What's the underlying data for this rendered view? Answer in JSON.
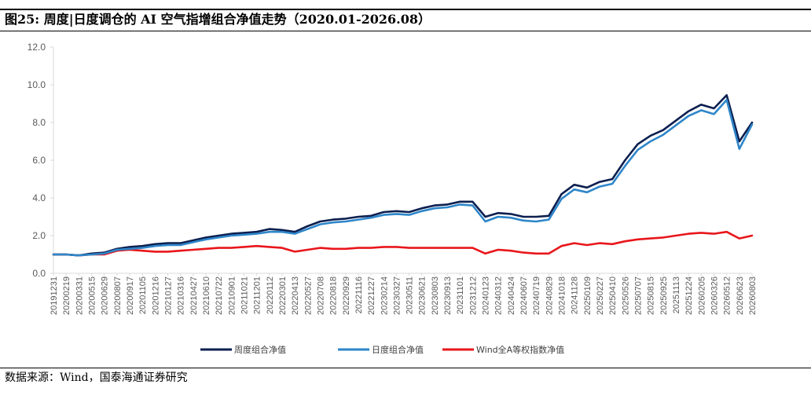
{
  "figure": {
    "title": "图25:  周度|日度调仓的 AI 空气指增组合净值走势（2020.01-2026.08）",
    "source": "数据来源：Wind，国泰海通证券研究"
  },
  "colors": {
    "weekly": "#0c1f4f",
    "daily": "#2e86c9",
    "wind_a": "#e8161b",
    "axis": "#d9d9d9",
    "tick_text": "#595959"
  },
  "chart_data": {
    "type": "line",
    "title": "",
    "xlabel": "",
    "ylabel": "",
    "ylim": [
      0,
      12
    ],
    "yticks": [
      "0.0",
      "2.0",
      "4.0",
      "6.0",
      "8.0",
      "10.0",
      "12.0"
    ],
    "grid": false,
    "legend_position": "bottom",
    "categories": [
      "20191231",
      "20200219",
      "20200331",
      "20200515",
      "20200629",
      "20200807",
      "20200917",
      "20201105",
      "20201216",
      "20210127",
      "20210316",
      "20210427",
      "20210610",
      "20210722",
      "20210901",
      "20211021",
      "20211201",
      "20220112",
      "20220301",
      "20220413",
      "20220527",
      "20220708",
      "20220818",
      "20220929",
      "20221116",
      "20221227",
      "20230214",
      "20230327",
      "20230511",
      "20230621",
      "20230803",
      "20230913",
      "20231101",
      "20231212",
      "20240123",
      "20240312",
      "20240424",
      "20240607",
      "20240719",
      "20240829",
      "20241018",
      "20241128",
      "20250109",
      "20250227",
      "20250410",
      "20250526",
      "20250707",
      "20250815",
      "20250925",
      "20251113",
      "20251224",
      "20260205",
      "20260326",
      "20260512",
      "20260623",
      "20260803"
    ],
    "series": [
      {
        "name": "周度组合净值",
        "color": "#0c1f4f",
        "values": [
          1.0,
          1.0,
          0.95,
          1.05,
          1.1,
          1.3,
          1.4,
          1.45,
          1.55,
          1.6,
          1.6,
          1.75,
          1.9,
          2.0,
          2.1,
          2.15,
          2.2,
          2.35,
          2.3,
          2.2,
          2.5,
          2.75,
          2.85,
          2.9,
          3.0,
          3.05,
          3.25,
          3.3,
          3.25,
          3.45,
          3.6,
          3.65,
          3.8,
          3.8,
          3.0,
          3.2,
          3.15,
          3.0,
          3.0,
          3.05,
          4.2,
          4.7,
          4.55,
          4.85,
          5.0,
          6.0,
          6.85,
          7.3,
          7.6,
          8.1,
          8.6,
          8.95,
          8.75,
          9.45,
          7.0,
          8.0
        ]
      },
      {
        "name": "日度组合净值",
        "color": "#2e86c9",
        "values": [
          1.0,
          1.0,
          0.95,
          1.0,
          1.05,
          1.25,
          1.3,
          1.35,
          1.45,
          1.5,
          1.5,
          1.65,
          1.8,
          1.9,
          2.0,
          2.05,
          2.1,
          2.2,
          2.2,
          2.1,
          2.35,
          2.6,
          2.7,
          2.75,
          2.85,
          2.95,
          3.1,
          3.15,
          3.1,
          3.3,
          3.45,
          3.5,
          3.65,
          3.6,
          2.75,
          3.0,
          2.95,
          2.8,
          2.75,
          2.85,
          3.95,
          4.45,
          4.3,
          4.6,
          4.75,
          5.7,
          6.55,
          7.0,
          7.35,
          7.85,
          8.35,
          8.65,
          8.45,
          9.2,
          6.6,
          7.9
        ]
      },
      {
        "name": "Wind全A等权指数净值",
        "color": "#e8161b",
        "values": [
          1.0,
          1.0,
          0.95,
          1.0,
          1.0,
          1.2,
          1.25,
          1.2,
          1.15,
          1.15,
          1.2,
          1.25,
          1.3,
          1.35,
          1.35,
          1.4,
          1.45,
          1.4,
          1.35,
          1.15,
          1.25,
          1.35,
          1.3,
          1.3,
          1.35,
          1.35,
          1.4,
          1.4,
          1.35,
          1.35,
          1.35,
          1.35,
          1.35,
          1.35,
          1.05,
          1.25,
          1.2,
          1.1,
          1.05,
          1.05,
          1.45,
          1.6,
          1.5,
          1.6,
          1.55,
          1.7,
          1.8,
          1.85,
          1.9,
          2.0,
          2.1,
          2.15,
          2.1,
          2.2,
          1.85,
          2.0
        ]
      }
    ]
  }
}
